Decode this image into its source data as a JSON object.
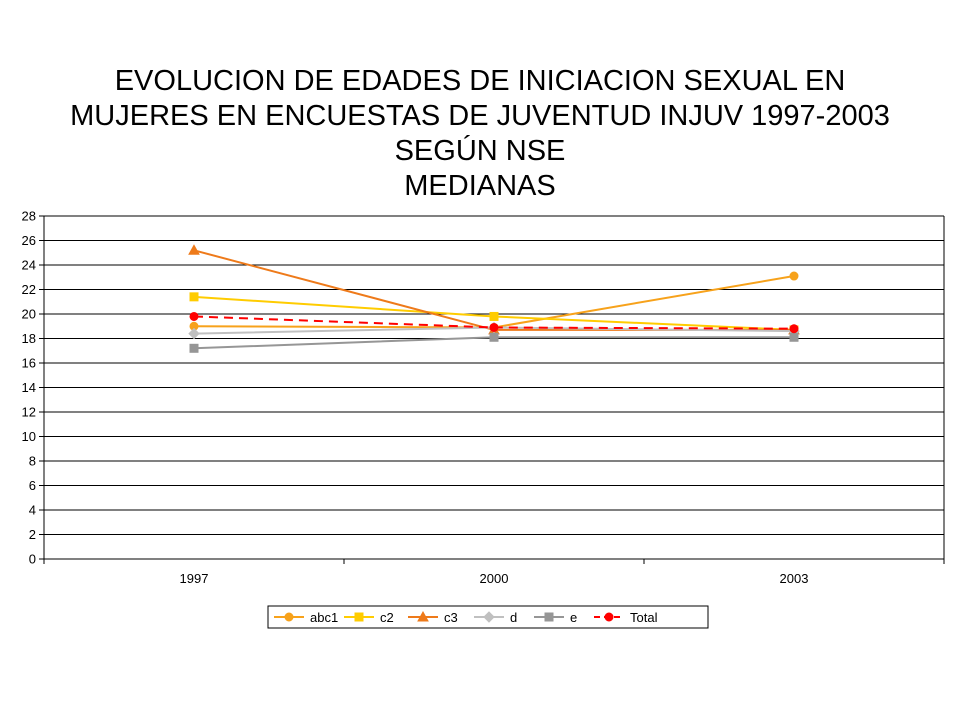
{
  "chart_data": {
    "type": "line",
    "title": [
      "EVOLUCION DE EDADES DE INICIACION SEXUAL EN",
      "MUJERES EN ENCUESTAS DE JUVENTUD INJUV 1997-2003",
      "SEGÚN NSE",
      "MEDIANAS"
    ],
    "xlabel": "",
    "ylabel": "",
    "categories": [
      "1997",
      "2000",
      "2003"
    ],
    "ylim": [
      0,
      28
    ],
    "yticks": [
      0,
      2,
      4,
      6,
      8,
      10,
      12,
      14,
      16,
      18,
      20,
      22,
      24,
      26,
      28
    ],
    "grid": true,
    "legend_position": "bottom",
    "series": [
      {
        "name": "abc1",
        "values": [
          19.0,
          18.9,
          23.1
        ],
        "color": "#F7A21B",
        "marker": "circle",
        "dash": false
      },
      {
        "name": "c2",
        "values": [
          21.4,
          19.8,
          18.7
        ],
        "color": "#FFCC00",
        "marker": "square",
        "dash": false
      },
      {
        "name": "c3",
        "values": [
          25.2,
          18.7,
          18.7
        ],
        "color": "#EE7A1A",
        "marker": "triangle",
        "dash": false
      },
      {
        "name": "d",
        "values": [
          18.4,
          18.9,
          18.6
        ],
        "color": "#C0C0C0",
        "marker": "diamond",
        "dash": false
      },
      {
        "name": "e",
        "values": [
          17.2,
          18.1,
          18.1
        ],
        "color": "#969696",
        "marker": "square",
        "dash": false
      },
      {
        "name": "Total",
        "values": [
          19.8,
          18.9,
          18.8
        ],
        "color": "#FF0000",
        "marker": "circle",
        "dash": true
      }
    ]
  }
}
